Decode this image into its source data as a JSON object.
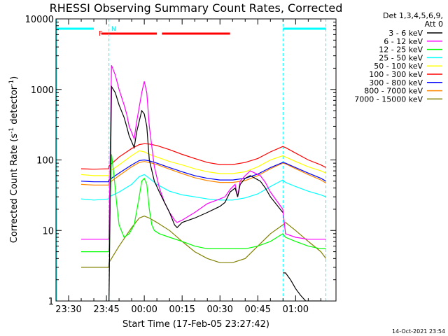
{
  "chart_data": {
    "type": "line",
    "title": "RHESSI Observing Summary Count Rates, Corrected",
    "xlabel": "Start Time (17-Feb-05 23:27:42)",
    "ylabel_main": "Corrected Count Rate (s",
    "ylabel_sup1": "-1",
    "ylabel_mid": " detector",
    "ylabel_sup2": "-1",
    "ylabel_end": ")",
    "yscale": "log",
    "ylim": [
      1,
      10000
    ],
    "y_ticks": [
      1,
      10,
      100,
      1000,
      10000
    ],
    "y_tick_labels": [
      "1",
      "10",
      "100",
      "1000",
      "10000"
    ],
    "xlim_minutes": [
      -5,
      106
    ],
    "x_tick_minutes": [
      0,
      15,
      30,
      45,
      60,
      75,
      90
    ],
    "x_tick_labels": [
      "23:30",
      "23:45",
      "00:00",
      "00:15",
      "00:30",
      "00:45",
      "01:00"
    ],
    "legend_header": [
      "Det 1,3,4,5,6,9,",
      "Att 0"
    ],
    "legend_position": "right",
    "timestamp": "14-Oct-2021 23:54",
    "markers": {
      "night_label": "N",
      "flare_label": "F",
      "night_bars": [
        [
          -5,
          10
        ],
        [
          85,
          102
        ]
      ],
      "flare_bars": [
        [
          13,
          35
        ],
        [
          37,
          64
        ]
      ],
      "night_dashed_lines": [
        16,
        85,
        102
      ],
      "night_solid_lines": [
        -5
      ]
    },
    "series": [
      {
        "name": "3 - 6 keV",
        "color": "#000000",
        "x": [
          16,
          17,
          18.5,
          20,
          22,
          23,
          24,
          26,
          27,
          29,
          30,
          31,
          32,
          34,
          36,
          38,
          40,
          42,
          43,
          45,
          50,
          55,
          60,
          62,
          64,
          66,
          67,
          68,
          70,
          72,
          76,
          78,
          80,
          84.9
        ],
        "y": [
          1,
          1100,
          900,
          600,
          400,
          300,
          220,
          150,
          250,
          500,
          450,
          300,
          100,
          50,
          35,
          25,
          18,
          12,
          11,
          13,
          15,
          18,
          22,
          25,
          35,
          40,
          30,
          45,
          55,
          60,
          50,
          40,
          30,
          18
        ]
      },
      {
        "name": "3 - 6 keV (N)",
        "color": "#000000",
        "legend": false,
        "x": [
          85,
          86,
          88,
          90,
          92,
          94,
          96,
          98,
          100
        ],
        "y": [
          2.5,
          2.5,
          2,
          1.5,
          1.2,
          1,
          1,
          1,
          1
        ]
      },
      {
        "name": "6 - 12 keV",
        "color": "#ff00ff",
        "x": [
          5,
          10,
          15.9,
          16,
          17,
          18.5,
          20,
          22,
          23,
          24,
          26,
          27,
          29,
          30,
          31,
          32,
          34,
          36,
          38,
          40,
          42,
          43,
          45,
          50,
          55,
          60,
          62,
          64,
          66,
          67,
          68,
          70,
          72,
          76,
          78,
          80,
          84.9,
          86,
          90,
          95,
          100,
          102
        ],
        "y": [
          7.5,
          7.5,
          7.5,
          8,
          2200,
          1600,
          1000,
          600,
          450,
          300,
          200,
          350,
          900,
          1300,
          900,
          300,
          80,
          40,
          25,
          18,
          14,
          13,
          14,
          18,
          24,
          28,
          30,
          38,
          45,
          30,
          50,
          60,
          70,
          60,
          48,
          35,
          20,
          9,
          8,
          7.5,
          7.5,
          7.5
        ]
      },
      {
        "name": "12 - 25 keV",
        "color": "#00ff00",
        "x": [
          5,
          10,
          15.9,
          16,
          17,
          18,
          19,
          20,
          22,
          24,
          26,
          28,
          29,
          30,
          31,
          32,
          33,
          34,
          36,
          40,
          45,
          50,
          55,
          60,
          65,
          70,
          75,
          80,
          84.9,
          86,
          90,
          95,
          100,
          102
        ],
        "y": [
          5,
          5,
          5,
          6,
          120,
          60,
          25,
          12,
          8,
          9,
          12,
          30,
          50,
          55,
          45,
          20,
          12,
          10,
          9,
          8,
          7,
          6,
          5.5,
          5.5,
          5.5,
          5.5,
          6,
          7,
          9,
          8,
          7,
          6,
          5.5,
          5.5
        ]
      },
      {
        "name": "25 - 50 keV",
        "color": "#00ffff",
        "x": [
          5,
          10,
          15.9,
          16,
          20,
          25,
          28,
          30,
          32,
          35,
          40,
          45,
          50,
          55,
          60,
          65,
          70,
          75,
          80,
          84.9,
          86,
          90,
          95,
          100,
          102
        ],
        "y": [
          28,
          27,
          28,
          30,
          35,
          45,
          58,
          62,
          55,
          45,
          36,
          32,
          30,
          28,
          27,
          27,
          29,
          33,
          42,
          52,
          48,
          42,
          36,
          32,
          30
        ]
      },
      {
        "name": "50 - 100 keV",
        "color": "#ffff00",
        "x": [
          5,
          10,
          15.9,
          16,
          20,
          25,
          28,
          30,
          32,
          35,
          40,
          45,
          50,
          55,
          60,
          65,
          70,
          75,
          80,
          84.9,
          86,
          90,
          95,
          100,
          102
        ],
        "y": [
          62,
          60,
          60,
          68,
          85,
          115,
          135,
          130,
          120,
          110,
          95,
          85,
          75,
          68,
          64,
          64,
          68,
          80,
          100,
          115,
          110,
          95,
          80,
          70,
          65
        ]
      },
      {
        "name": "100 - 300 keV",
        "color": "#ff0000",
        "x": [
          5,
          10,
          15.9,
          16,
          20,
          25,
          28,
          30,
          32,
          35,
          40,
          45,
          50,
          55,
          60,
          65,
          70,
          75,
          80,
          84.9,
          86,
          90,
          95,
          100,
          102
        ],
        "y": [
          75,
          74,
          75,
          82,
          110,
          145,
          165,
          170,
          168,
          160,
          140,
          120,
          105,
          92,
          86,
          86,
          92,
          105,
          130,
          155,
          150,
          125,
          100,
          85,
          78
        ]
      },
      {
        "name": "300 - 800 keV",
        "color": "#0000ff",
        "x": [
          5,
          10,
          15.9,
          16,
          20,
          25,
          28,
          30,
          32,
          35,
          40,
          45,
          50,
          55,
          60,
          65,
          70,
          75,
          80,
          84.9,
          86,
          90,
          95,
          100,
          102
        ],
        "y": [
          50,
          49,
          49,
          52,
          65,
          85,
          98,
          100,
          97,
          90,
          78,
          68,
          60,
          55,
          52,
          52,
          55,
          63,
          78,
          92,
          90,
          78,
          65,
          55,
          50
        ]
      },
      {
        "name": "800 - 7000 keV",
        "color": "#ff8800",
        "x": [
          5,
          10,
          15.9,
          16,
          20,
          25,
          28,
          30,
          32,
          35,
          40,
          45,
          50,
          55,
          60,
          65,
          70,
          75,
          80,
          84.9,
          86,
          90,
          95,
          100,
          102
        ],
        "y": [
          45,
          44,
          44,
          47,
          60,
          80,
          92,
          95,
          92,
          86,
          74,
          64,
          56,
          51,
          48,
          48,
          51,
          60,
          75,
          90,
          88,
          75,
          62,
          52,
          47
        ]
      },
      {
        "name": "7000 - 15000 keV",
        "color": "#808000",
        "x": [
          5,
          10,
          15.9,
          16,
          20,
          25,
          28,
          30,
          32,
          35,
          40,
          45,
          50,
          55,
          60,
          65,
          70,
          75,
          80,
          84.9,
          86,
          90,
          95,
          100,
          102
        ],
        "y": [
          3,
          3,
          3,
          3.5,
          6,
          11,
          15,
          16,
          15,
          13,
          10,
          7,
          5,
          4,
          3.5,
          3.5,
          4,
          6,
          9,
          12,
          13,
          10,
          7,
          5,
          4
        ]
      }
    ]
  }
}
